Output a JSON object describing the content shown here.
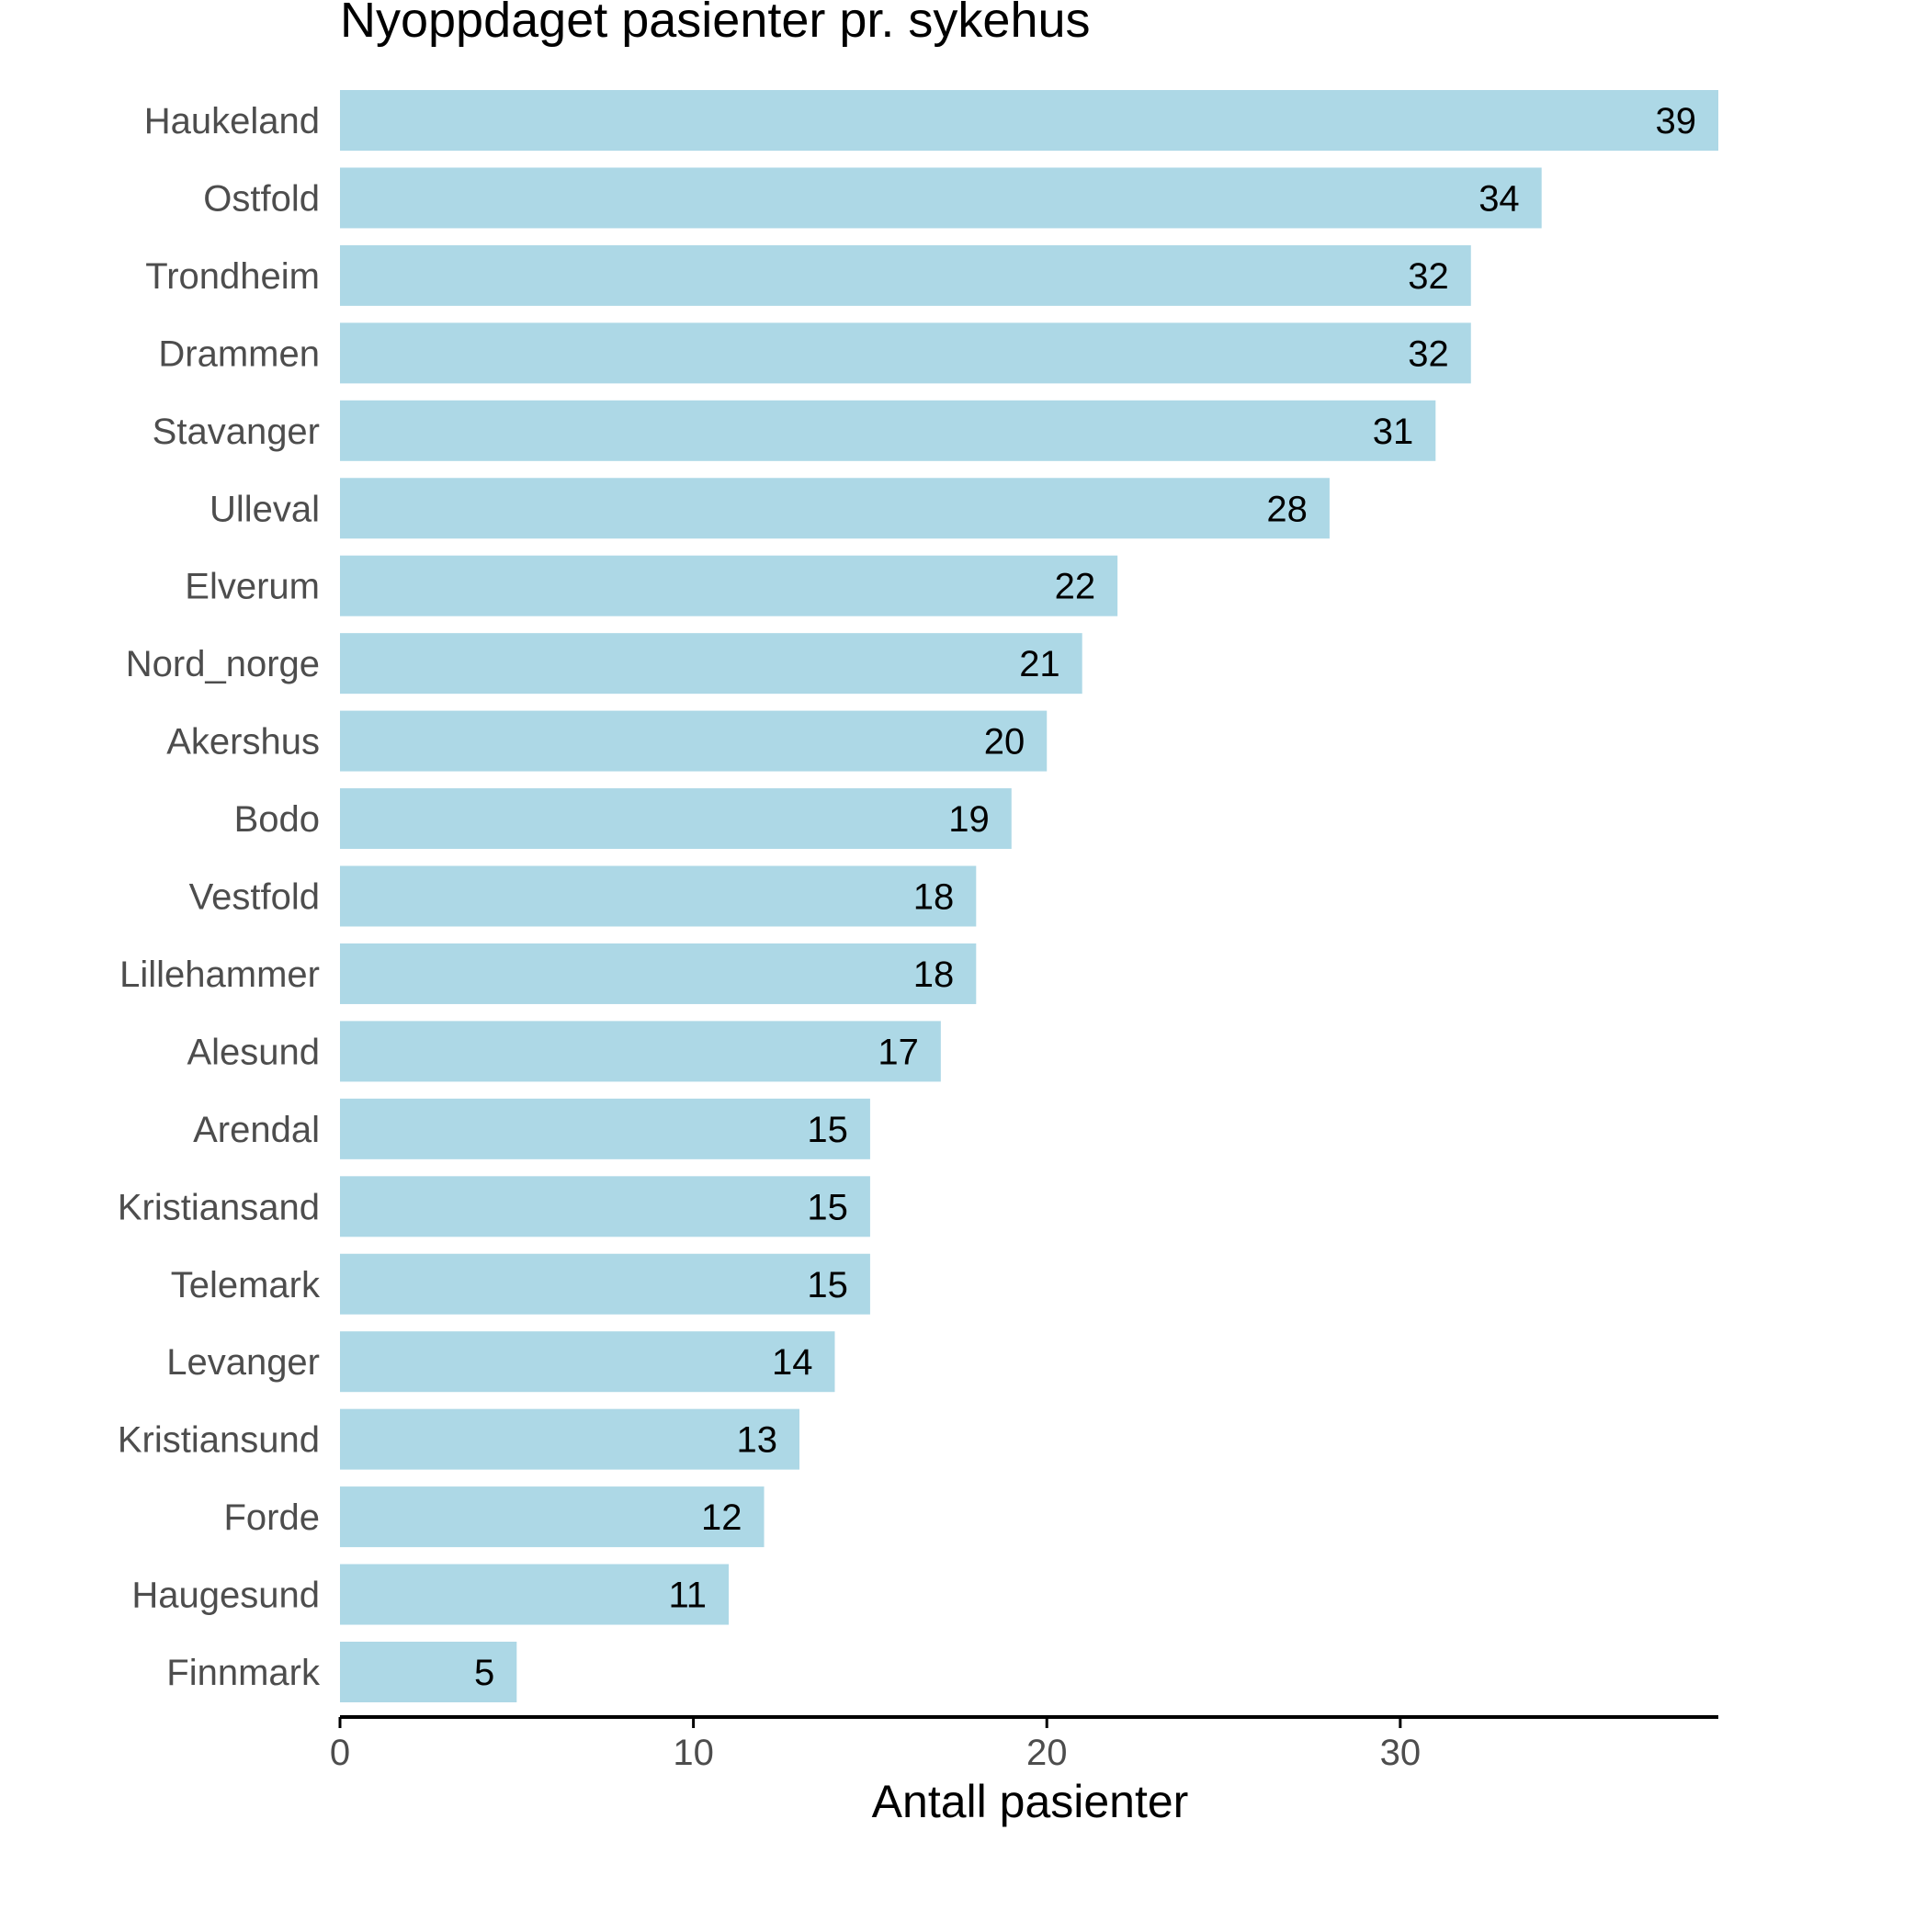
{
  "chart_data": {
    "type": "bar",
    "orientation": "horizontal",
    "title": "Nyoppdaget pasienter pr. sykehus",
    "xlabel": "Antall pasienter",
    "ylabel": "",
    "categories": [
      "Haukeland",
      "Ostfold",
      "Trondheim",
      "Drammen",
      "Stavanger",
      "Ulleval",
      "Elverum",
      "Nord_norge",
      "Akershus",
      "Bodo",
      "Vestfold",
      "Lillehammer",
      "Alesund",
      "Arendal",
      "Kristiansand",
      "Telemark",
      "Levanger",
      "Kristiansund",
      "Forde",
      "Haugesund",
      "Finnmark"
    ],
    "values": [
      39,
      34,
      32,
      32,
      31,
      28,
      22,
      21,
      20,
      19,
      18,
      18,
      17,
      15,
      15,
      15,
      14,
      13,
      12,
      11,
      5
    ],
    "xlim": [
      0,
      39
    ],
    "xticks": [
      0,
      10,
      20,
      30
    ],
    "data_labels": true,
    "grid": false,
    "legend": "none",
    "bar_color": "#add8e6"
  }
}
